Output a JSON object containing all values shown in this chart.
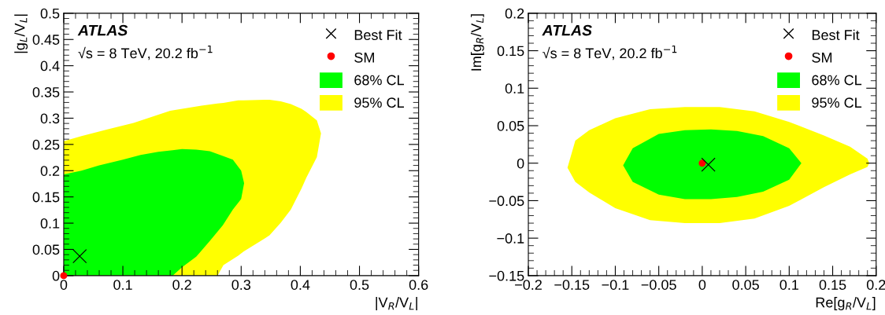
{
  "chart_data": [
    {
      "type": "area",
      "xlabel": "|V$_{R}$/V$_{L}$|",
      "ylabel": "|g$_{L}$/V$_{L}$|",
      "annotations": [
        "ATLAS",
        "√s = 8 TeV, 20.2 fb$^{−1}$"
      ],
      "xlim": [
        0,
        0.6
      ],
      "xticks": [
        0,
        0.1,
        0.2,
        0.3,
        0.4,
        0.5,
        0.6
      ],
      "ylim": [
        0,
        0.5
      ],
      "yticks": [
        0,
        0.05,
        0.1,
        0.15,
        0.2,
        0.25,
        0.3,
        0.35,
        0.4,
        0.45,
        0.5
      ],
      "grid": false,
      "legend": "top right",
      "series": [
        {
          "name": "95% CL",
          "color": "#ffff00",
          "x": [
            0,
            0.03,
            0.075,
            0.118,
            0.18,
            0.233,
            0.26,
            0.27,
            0.295,
            0.304,
            0.34,
            0.348,
            0.367,
            0.384,
            0.402,
            0.41,
            0.428,
            0.435,
            0.428,
            0.41,
            0.402,
            0.384,
            0.367,
            0.348,
            0.34,
            0.304,
            0.295,
            0.27,
            0.26,
            0
          ],
          "values": [
            0.256,
            0.266,
            0.279,
            0.291,
            0.314,
            0.324,
            0.328,
            0.329,
            0.334,
            0.334,
            0.335,
            0.335,
            0.332,
            0.327,
            0.318,
            0.312,
            0.296,
            0.271,
            0.226,
            0.186,
            0.166,
            0.126,
            0.101,
            0.077,
            0.071,
            0.046,
            0.038,
            0.02,
            0,
            0
          ]
        },
        {
          "name": "68% CL",
          "color": "#00ff00",
          "x": [
            0,
            0.03,
            0.06,
            0.1,
            0.13,
            0.16,
            0.184,
            0.2,
            0.224,
            0.247,
            0.269,
            0.286,
            0.3,
            0.305,
            0.3,
            0.286,
            0.269,
            0.247,
            0.224,
            0.2,
            0.184,
            0
          ],
          "values": [
            0.193,
            0.2,
            0.21,
            0.221,
            0.23,
            0.236,
            0.239,
            0.241,
            0.24,
            0.237,
            0.228,
            0.221,
            0.2,
            0.176,
            0.146,
            0.126,
            0.096,
            0.066,
            0.036,
            0.016,
            0,
            0
          ]
        },
        {
          "name": "SM",
          "type": "scatter",
          "color": "#ff0000",
          "marker": "circle",
          "x": [
            0
          ],
          "values": [
            0
          ]
        },
        {
          "name": "Best Fit",
          "type": "scatter",
          "color": "#000000",
          "marker": "cross",
          "x": [
            0.027
          ],
          "values": [
            0.037
          ]
        }
      ]
    },
    {
      "type": "area",
      "xlabel": "Re[g$_{R}$/V$_{L}$]",
      "ylabel": "Im[g$_{R}$/V$_{L}$]",
      "annotations": [
        "ATLAS",
        "√s = 8 TeV, 20.2 fb$^{−1}$"
      ],
      "xlim": [
        -0.2,
        0.2
      ],
      "xticks": [
        -0.2,
        -0.15,
        -0.1,
        -0.05,
        0,
        0.05,
        0.1,
        0.15,
        0.2
      ],
      "ylim": [
        -0.15,
        0.2
      ],
      "yticks": [
        -0.15,
        -0.1,
        -0.05,
        0,
        0.05,
        0.1,
        0.15,
        0.2
      ],
      "grid": false,
      "legend": "top right",
      "series": [
        {
          "name": "95% CL",
          "color": "#ffff00",
          "x": [
            -0.155,
            -0.146,
            -0.13,
            -0.1,
            -0.06,
            -0.02,
            0.02,
            0.06,
            0.1,
            0.14,
            0.17,
            0.19,
            0.192,
            0.19,
            0.17,
            0.14,
            0.1,
            0.06,
            0.02,
            -0.02,
            -0.06,
            -0.1,
            -0.13,
            -0.146
          ],
          "values": [
            -0.006,
            0.03,
            0.044,
            0.06,
            0.072,
            0.075,
            0.075,
            0.069,
            0.055,
            0.037,
            0.022,
            0.006,
            0,
            -0.005,
            -0.015,
            -0.032,
            -0.057,
            -0.074,
            -0.08,
            -0.08,
            -0.076,
            -0.06,
            -0.039,
            -0.025
          ]
        },
        {
          "name": "68% CL",
          "color": "#00ff00",
          "x": [
            -0.091,
            -0.08,
            -0.05,
            -0.02,
            0.01,
            0.04,
            0.07,
            0.1,
            0.114,
            0.1,
            0.07,
            0.04,
            0.01,
            -0.02,
            -0.05,
            -0.08
          ],
          "values": [
            -0.003,
            0.02,
            0.039,
            0.044,
            0.045,
            0.043,
            0.036,
            0.02,
            0,
            -0.022,
            -0.038,
            -0.045,
            -0.048,
            -0.048,
            -0.042,
            -0.025
          ]
        },
        {
          "name": "SM",
          "type": "scatter",
          "color": "#ff0000",
          "marker": "circle",
          "x": [
            0
          ],
          "values": [
            0
          ]
        },
        {
          "name": "Best Fit",
          "type": "scatter",
          "color": "#000000",
          "marker": "cross",
          "x": [
            0.007
          ],
          "values": [
            -0.002
          ]
        }
      ]
    }
  ]
}
